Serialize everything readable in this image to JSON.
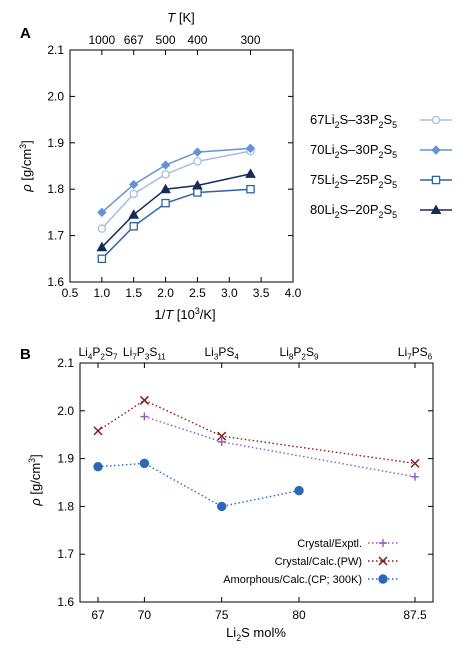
{
  "chart_data": [
    {
      "panel_label": "A",
      "type": "line",
      "xlabel_parts": [
        "1/",
        "T",
        "  [10",
        "3",
        "/K]"
      ],
      "ylabel_parts": [
        "ρ",
        "  [g/cm",
        "3",
        "]"
      ],
      "top_label_parts": [
        "T",
        "  [K]"
      ],
      "xlim": [
        0.5,
        4.0
      ],
      "ylim": [
        1.6,
        2.1
      ],
      "x_ticks": [
        0.5,
        1.0,
        1.5,
        2.0,
        2.5,
        3.0,
        3.5,
        4.0
      ],
      "x_tick_labels": [
        "0.5",
        "1.0",
        "1.5",
        "2.0",
        "2.5",
        "3.0",
        "3.5",
        "4.0"
      ],
      "y_ticks": [
        1.6,
        1.7,
        1.8,
        1.9,
        2.0,
        2.1
      ],
      "y_tick_labels": [
        "1.6",
        "1.7",
        "1.8",
        "1.9",
        "2.0",
        "2.1"
      ],
      "top_ticks": [
        1.0,
        1.5,
        2.0,
        2.5,
        3.3333
      ],
      "top_tick_labels": [
        "1000",
        "667",
        "500",
        "400",
        "300"
      ],
      "legend_position": "right",
      "series": [
        {
          "name_parts": [
            "67Li",
            "2",
            "S–33P",
            "2",
            "S",
            "5"
          ],
          "color": "#a4bfe0",
          "marker": "circle",
          "x": [
            1.0,
            1.5,
            2.0,
            2.5,
            3.333
          ],
          "y": [
            1.715,
            1.79,
            1.832,
            1.86,
            1.882
          ]
        },
        {
          "name_parts": [
            "70Li",
            "2",
            "S–30P",
            "2",
            "S",
            "5"
          ],
          "color": "#6494d4",
          "marker": "diamond",
          "x": [
            1.0,
            1.5,
            2.0,
            2.5,
            3.333
          ],
          "y": [
            1.75,
            1.81,
            1.852,
            1.88,
            1.888
          ]
        },
        {
          "name_parts": [
            "75Li",
            "2",
            "S–25P",
            "2",
            "S",
            "5"
          ],
          "color": "#2c62a8",
          "marker": "square",
          "x": [
            1.0,
            1.5,
            2.0,
            2.5,
            3.333
          ],
          "y": [
            1.65,
            1.72,
            1.77,
            1.793,
            1.8
          ]
        },
        {
          "name_parts": [
            "80Li",
            "2",
            "S–20P",
            "2",
            "S",
            "5"
          ],
          "color": "#132c55",
          "marker": "triangle",
          "x": [
            1.0,
            1.5,
            2.0,
            2.5,
            3.333
          ],
          "y": [
            1.675,
            1.745,
            1.8,
            1.808,
            1.833
          ]
        }
      ]
    },
    {
      "panel_label": "B",
      "type": "line",
      "xlabel_parts": [
        "Li",
        "2",
        "S mol%"
      ],
      "ylabel_parts": [
        "ρ",
        "  [g/cm",
        "3",
        "]"
      ],
      "xlim": [
        67,
        87.5
      ],
      "ylim": [
        1.6,
        2.1
      ],
      "x_ticks": [
        67,
        70,
        75,
        80,
        87.5
      ],
      "x_tick_labels": [
        "67",
        "70",
        "75",
        "80",
        "87.5"
      ],
      "y_ticks": [
        1.6,
        1.7,
        1.8,
        1.9,
        2.0,
        2.1
      ],
      "y_tick_labels": [
        "1.6",
        "1.7",
        "1.8",
        "1.9",
        "2.0",
        "2.1"
      ],
      "top_ticks": [
        67,
        70,
        75,
        80,
        87.5
      ],
      "top_labels": [
        {
          "parts": [
            "Li",
            "4",
            "P",
            "2",
            "S",
            "7"
          ]
        },
        {
          "parts": [
            "Li",
            "7",
            "P",
            "3",
            "S",
            "11"
          ]
        },
        {
          "parts": [
            "Li",
            "3",
            "PS",
            "4"
          ]
        },
        {
          "parts": [
            "Li",
            "8",
            "P",
            "2",
            "S",
            "9"
          ]
        },
        {
          "parts": [
            "Li",
            "7",
            "PS",
            "6"
          ]
        }
      ],
      "legend_position": "bottom-right",
      "series": [
        {
          "name": "Crystal/Exptl.",
          "color": "#8a5cc0",
          "marker": "plus",
          "x": [
            70,
            75,
            87.5
          ],
          "y": [
            1.988,
            1.935,
            1.862
          ]
        },
        {
          "name": "Crystal/Calc.(PW)",
          "color": "#8b1a1a",
          "marker": "cross",
          "x": [
            67,
            70,
            75,
            87.5
          ],
          "y": [
            1.958,
            2.022,
            1.947,
            1.89
          ]
        },
        {
          "name": "Amorphous/Calc.(CP; 300K)",
          "color": "#2d67b8",
          "marker": "dot",
          "x": [
            67,
            70,
            75,
            80
          ],
          "y": [
            1.883,
            1.89,
            1.8,
            1.833
          ]
        }
      ]
    }
  ]
}
